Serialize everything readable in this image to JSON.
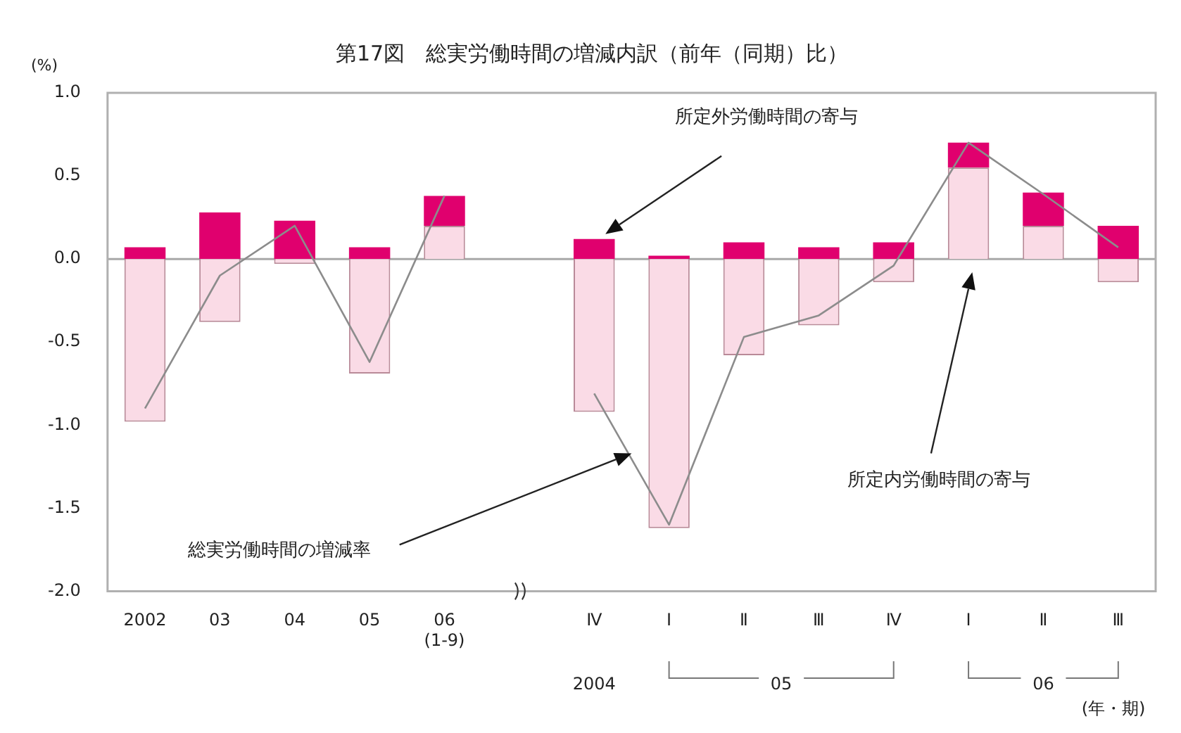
{
  "chart_data": {
    "type": "bar",
    "title": "第17図　総実労働時間の増減内訳（前年（同期）比）",
    "ylabel": "(%)",
    "categories": [
      "2002",
      "03",
      "04",
      "05",
      "06\n(1-9)",
      null,
      "Ⅳ",
      "Ⅰ",
      "Ⅱ",
      "Ⅲ",
      "Ⅳ",
      "Ⅰ",
      "Ⅱ",
      "Ⅲ"
    ],
    "stacked": true,
    "series": [
      {
        "color": "#fadbe6",
        "values": [
          -0.98,
          -0.38,
          -0.03,
          -0.69,
          0.2,
          null,
          -0.92,
          -1.62,
          -0.58,
          -0.4,
          -0.14,
          0.55,
          0.2,
          -0.14
        ]
      },
      {
        "color": "#e0006e",
        "values": [
          0.07,
          0.28,
          0.23,
          0.07,
          0.18,
          null,
          0.12,
          0.02,
          0.1,
          0.07,
          0.1,
          0.15,
          0.2,
          0.2
        ]
      },
      {
        "type": "line",
        "color": "#8c8c8c",
        "values": [
          -0.9,
          -0.1,
          0.2,
          -0.62,
          0.38,
          null,
          -0.81,
          -1.6,
          -0.47,
          -0.34,
          -0.04,
          0.7,
          0.39,
          0.07
        ]
      }
    ],
    "marker": "none",
    "grid": false,
    "legend": false,
    "ylim": [
      -2,
      1
    ],
    "yticks": [
      {
        "value": -2,
        "label": "-2.0"
      },
      {
        "value": -1.5,
        "label": "-1.5"
      },
      {
        "value": -1,
        "label": "-1.0"
      },
      {
        "value": -0.5,
        "label": "-0.5"
      },
      {
        "value": 0,
        "label": "0.0"
      },
      {
        "value": 0.5,
        "label": "0.5"
      },
      {
        "value": 1,
        "label": "1.0"
      }
    ],
    "ref_lines": [
      {
        "axis": "y",
        "value": 0,
        "color": "#a8a8a8"
      }
    ],
    "annotations": [
      "所定内労働時間の寄与",
      "所定外労働時間の寄与",
      "総実労働時間の増減率",
      "2004",
      "05",
      "06",
      "(年・期)"
    ]
  }
}
